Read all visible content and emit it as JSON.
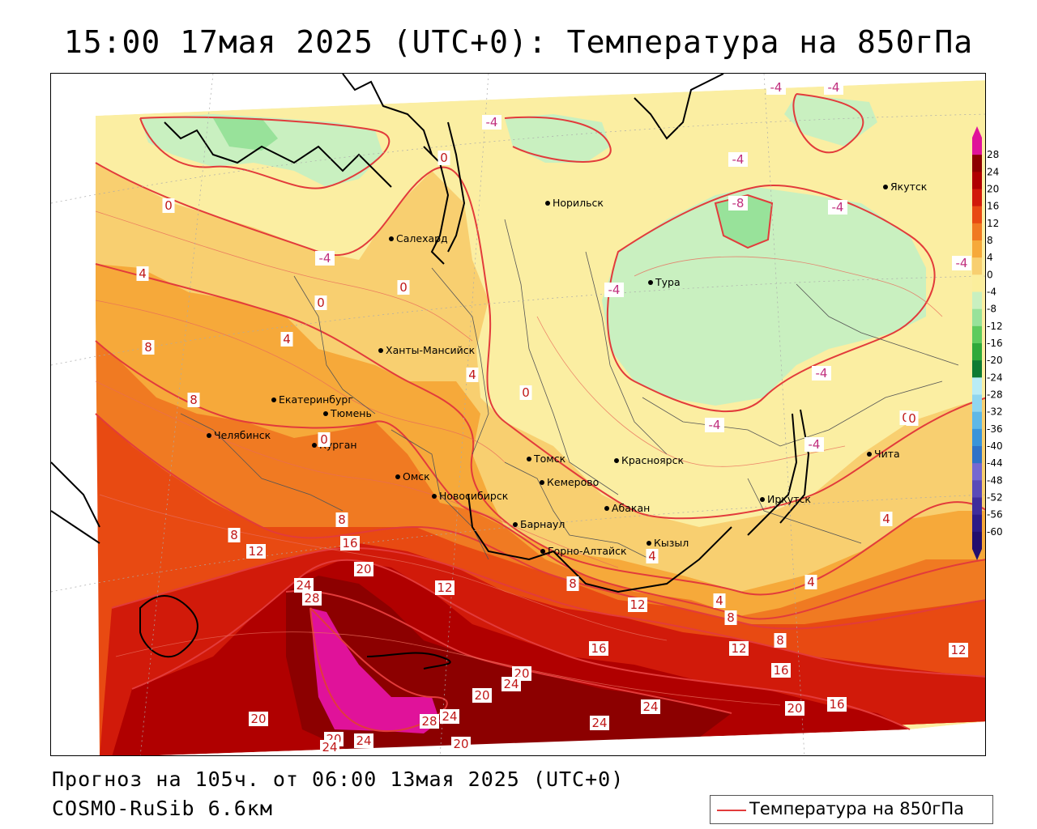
{
  "header": {
    "title": "15:00 17мая 2025 (UTC+0): Температура на 850гПа"
  },
  "footer": {
    "forecast_line": "Прогноз на 105ч. от 06:00 13мая 2025 (UTC+0)",
    "model_line": "COSMO-RuSib 6.6км"
  },
  "legend": {
    "label": "Температура на 850гПа",
    "line_color": "#e23b3b"
  },
  "colorbar": {
    "labels": [
      "28",
      "24",
      "20",
      "16",
      "12",
      "8",
      "4",
      "0",
      "-4",
      "-8",
      "-12",
      "-16",
      "-20",
      "-24",
      "-28",
      "-32",
      "-36",
      "-40",
      "-44",
      "-48",
      "-52",
      "-56",
      "-60"
    ],
    "colors": [
      "#e0129a",
      "#8c0000",
      "#b00000",
      "#d11a0a",
      "#e84a12",
      "#f07a22",
      "#f6a93a",
      "#f8cf70",
      "#fbee9c",
      "#c9f0c0",
      "#98e29a",
      "#5fcb5e",
      "#2fa93a",
      "#0e7a32",
      "#b9ecf5",
      "#8fd6ef",
      "#5fb8e6",
      "#3a94d9",
      "#2f72c7",
      "#7668d1",
      "#5a4ab8",
      "#3f2c9c",
      "#2d1a86",
      "#220e6e"
    ]
  },
  "cities": [
    {
      "name": "Норильск"
    },
    {
      "name": "Якутск"
    },
    {
      "name": "Салехард"
    },
    {
      "name": "Тура"
    },
    {
      "name": "Ханты-Мансийск"
    },
    {
      "name": "Екатеринбург"
    },
    {
      "name": "Тюмень"
    },
    {
      "name": "Челябинск"
    },
    {
      "name": "Курган"
    },
    {
      "name": "Томск"
    },
    {
      "name": "Красноярск"
    },
    {
      "name": "Чита"
    },
    {
      "name": "Омск"
    },
    {
      "name": "Новосибирск"
    },
    {
      "name": "Кемерово"
    },
    {
      "name": "Абакан"
    },
    {
      "name": "Иркутск"
    },
    {
      "name": "Барнаул"
    },
    {
      "name": "Кызыл"
    },
    {
      "name": "Горно-Алтайск"
    }
  ],
  "isotherm_labels": [
    "-4",
    "-4",
    "-4",
    "0",
    "-4",
    "-8",
    "-4",
    "-4",
    "0",
    "-4",
    "4",
    "0",
    "0",
    "-4",
    "0",
    "8",
    "4",
    "4",
    "-4",
    "-4",
    "0",
    "-4",
    "8",
    "8",
    "0",
    "12",
    "8",
    "16",
    "20",
    "24",
    "28",
    "12",
    "12",
    "4",
    "8",
    "8",
    "0",
    "4",
    "12",
    "8",
    "16",
    "12",
    "4",
    "4",
    "16",
    "20",
    "20",
    "24",
    "20",
    "24",
    "16",
    "24",
    "20",
    "28",
    "24",
    "20",
    "20",
    "24",
    "24"
  ]
}
